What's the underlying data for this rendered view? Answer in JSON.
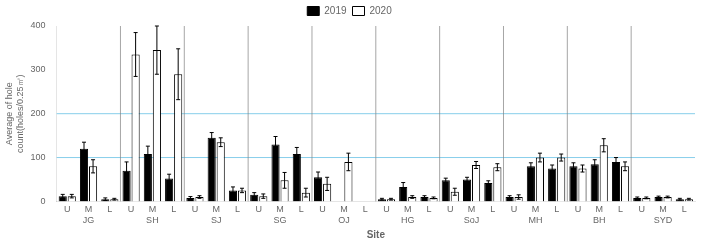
{
  "chart_data": {
    "type": "bar",
    "ylabel": "Average of hole\ncount(holes/0.25㎡)",
    "xlabel": "Site",
    "groups": [
      "JG",
      "SH",
      "SJ",
      "SG",
      "OJ",
      "HG",
      "SoJ",
      "MH",
      "BH",
      "SYD"
    ],
    "categories": [
      "U",
      "M",
      "L",
      "U",
      "M",
      "L",
      "U",
      "M",
      "L",
      "U",
      "M",
      "L",
      "U",
      "M",
      "L",
      "U",
      "M",
      "L",
      "U",
      "M",
      "L",
      "U",
      "M",
      "L",
      "U",
      "M",
      "L",
      "U",
      "M",
      "L"
    ],
    "series": [
      {
        "name": "2019",
        "color": "#000000",
        "values": [
          12,
          120,
          5,
          70,
          108,
          52,
          8,
          145,
          25,
          15,
          130,
          108,
          55,
          0,
          0,
          5,
          33,
          10,
          48,
          50,
          42,
          10,
          80,
          75,
          80,
          85,
          90,
          8,
          10,
          5
        ],
        "errors": [
          4,
          15,
          3,
          20,
          18,
          10,
          3,
          12,
          8,
          5,
          18,
          15,
          12,
          0,
          0,
          2,
          10,
          3,
          5,
          5,
          5,
          3,
          8,
          8,
          8,
          10,
          10,
          2,
          2,
          2
        ]
      },
      {
        "name": "2020",
        "color": "#ffffff",
        "values": [
          12,
          80,
          5,
          335,
          345,
          290,
          10,
          135,
          25,
          12,
          48,
          20,
          40,
          90,
          0,
          5,
          10,
          8,
          22,
          83,
          78,
          10,
          100,
          100,
          75,
          128,
          80,
          8,
          10,
          5
        ],
        "errors": [
          4,
          15,
          2,
          50,
          55,
          58,
          3,
          10,
          5,
          5,
          18,
          10,
          15,
          20,
          0,
          2,
          3,
          2,
          8,
          8,
          8,
          5,
          10,
          8,
          8,
          15,
          10,
          2,
          2,
          2
        ]
      }
    ],
    "ylim": [
      0,
      400
    ],
    "yticks": [
      0,
      100,
      200,
      300,
      400
    ],
    "hlines": [
      {
        "value": 100,
        "color": "#87CEEB"
      },
      {
        "value": 200,
        "color": "#87CEEB"
      }
    ],
    "grid": false,
    "legend": "top"
  }
}
